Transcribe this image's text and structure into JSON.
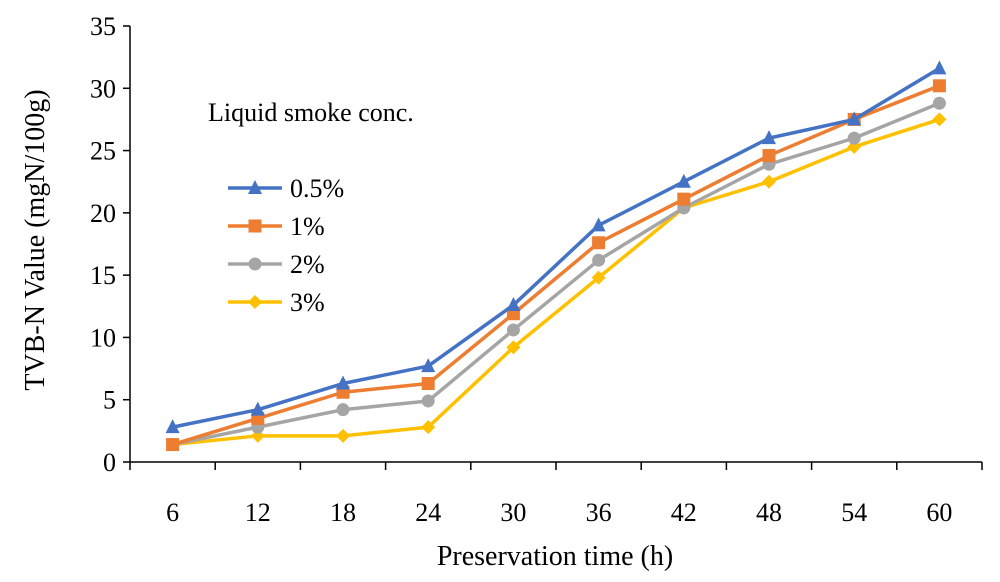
{
  "chart_data": {
    "type": "line",
    "title": "",
    "xlabel": "Preservation time (h)",
    "ylabel": "TVB-N Value (mgN/100g)",
    "x": [
      6,
      12,
      18,
      24,
      30,
      36,
      42,
      48,
      54,
      60
    ],
    "ylim": [
      0,
      35
    ],
    "yticks": [
      0,
      5,
      10,
      15,
      20,
      25,
      30,
      35
    ],
    "grid": false,
    "legend": {
      "title": "Liquid smoke conc.",
      "position": "top-left"
    },
    "series": [
      {
        "name": "0.5%",
        "color": "#4472C4",
        "marker": "triangle",
        "values": [
          2.8,
          4.2,
          6.3,
          7.7,
          12.6,
          19.0,
          22.5,
          26.0,
          27.5,
          31.6
        ]
      },
      {
        "name": "1%",
        "color": "#ED7D31",
        "marker": "square",
        "values": [
          1.4,
          3.5,
          5.6,
          6.3,
          11.9,
          17.6,
          21.1,
          24.6,
          27.5,
          30.2
        ]
      },
      {
        "name": "2%",
        "color": "#A5A5A5",
        "marker": "circle",
        "values": [
          1.4,
          2.8,
          4.2,
          4.9,
          10.6,
          16.2,
          20.4,
          23.9,
          26.0,
          28.8
        ]
      },
      {
        "name": "3%",
        "color": "#FFC000",
        "marker": "diamond",
        "values": [
          1.4,
          2.1,
          2.1,
          2.8,
          9.2,
          14.8,
          20.4,
          22.5,
          25.3,
          27.5
        ]
      }
    ]
  }
}
